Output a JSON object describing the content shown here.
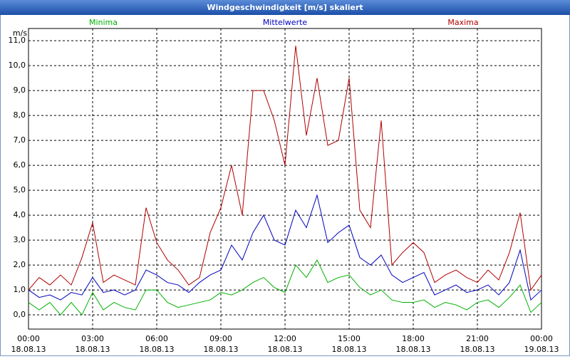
{
  "chart_data": {
    "type": "line",
    "title": "Windgeschwindigkeit [m/s] skaliert",
    "y_unit": "m/s",
    "x": [
      0,
      0.5,
      1,
      1.5,
      2,
      2.5,
      3,
      3.5,
      4,
      4.5,
      5,
      5.5,
      6,
      6.5,
      7,
      7.5,
      8,
      8.5,
      9,
      9.5,
      10,
      10.5,
      11,
      11.5,
      12,
      12.5,
      13,
      13.5,
      14,
      14.5,
      15,
      15.5,
      16,
      16.5,
      17,
      17.5,
      18,
      18.5,
      19,
      19.5,
      20,
      20.5,
      21,
      21.5,
      22,
      22.5,
      23,
      23.5,
      24
    ],
    "series": [
      {
        "name": "Minima",
        "color": "#00b000",
        "values": [
          0.5,
          0.2,
          0.5,
          0.0,
          0.5,
          0.0,
          0.9,
          0.2,
          0.5,
          0.3,
          0.2,
          1.0,
          1.0,
          0.5,
          0.3,
          0.4,
          0.5,
          0.6,
          0.9,
          0.8,
          1.0,
          1.3,
          1.5,
          1.1,
          0.9,
          2.0,
          1.5,
          2.2,
          1.3,
          1.5,
          1.6,
          1.1,
          0.8,
          1.0,
          0.6,
          0.5,
          0.5,
          0.6,
          0.3,
          0.5,
          0.4,
          0.2,
          0.5,
          0.6,
          0.3,
          0.7,
          1.2,
          0.1,
          0.5
        ]
      },
      {
        "name": "Mittelwerte",
        "color": "#0000c0",
        "values": [
          1.0,
          0.7,
          0.8,
          0.6,
          0.9,
          0.8,
          1.5,
          0.9,
          1.0,
          0.8,
          1.0,
          1.8,
          1.6,
          1.3,
          1.2,
          0.9,
          1.3,
          1.6,
          1.8,
          2.8,
          2.2,
          3.3,
          4.0,
          3.0,
          2.8,
          4.2,
          3.5,
          4.8,
          2.9,
          3.3,
          3.6,
          2.3,
          2.0,
          2.4,
          1.6,
          1.3,
          1.5,
          1.7,
          0.8,
          1.0,
          1.2,
          0.9,
          1.0,
          1.2,
          0.8,
          1.3,
          2.6,
          0.6,
          1.0
        ]
      },
      {
        "name": "Maxima",
        "color": "#b00000",
        "values": [
          1.0,
          1.5,
          1.2,
          1.6,
          1.2,
          2.3,
          3.7,
          1.3,
          1.6,
          1.4,
          1.2,
          4.3,
          2.9,
          2.2,
          1.8,
          1.2,
          1.5,
          3.3,
          4.3,
          6.0,
          4.0,
          9.0,
          9.0,
          7.8,
          6.0,
          10.8,
          7.2,
          9.5,
          6.8,
          7.0,
          9.5,
          4.2,
          3.5,
          7.8,
          2.0,
          2.5,
          2.9,
          2.5,
          1.3,
          1.6,
          1.8,
          1.5,
          1.3,
          1.8,
          1.4,
          2.5,
          4.1,
          1.0,
          1.6
        ]
      }
    ],
    "xlim": [
      0,
      24
    ],
    "xticks": [
      {
        "value": 0,
        "label": "00:00",
        "date": "18.08.13"
      },
      {
        "value": 3,
        "label": "03:00",
        "date": "18.08.13"
      },
      {
        "value": 6,
        "label": "06:00",
        "date": "18.08.13"
      },
      {
        "value": 9,
        "label": "09:00",
        "date": "18.08.13"
      },
      {
        "value": 12,
        "label": "12:00",
        "date": "18.08.13"
      },
      {
        "value": 15,
        "label": "15:00",
        "date": "18.08.13"
      },
      {
        "value": 18,
        "label": "18:00",
        "date": "18.08.13"
      },
      {
        "value": 21,
        "label": "21:00",
        "date": "18.08.13"
      },
      {
        "value": 24,
        "label": "00:00",
        "date": "19.08.13"
      }
    ],
    "ylim": [
      -0.57,
      11.49
    ],
    "yticks": [
      {
        "value": 0,
        "label": "0,0"
      },
      {
        "value": 1,
        "label": "1,0"
      },
      {
        "value": 2,
        "label": "2,0"
      },
      {
        "value": 3,
        "label": "3,0"
      },
      {
        "value": 4,
        "label": "4,0"
      },
      {
        "value": 5,
        "label": "5,0"
      },
      {
        "value": 6,
        "label": "6,0"
      },
      {
        "value": 7,
        "label": "7,0"
      },
      {
        "value": 8,
        "label": "8,0"
      },
      {
        "value": 9,
        "label": "9,0"
      },
      {
        "value": 10,
        "label": "10,0"
      },
      {
        "value": 11,
        "label": "11,0"
      }
    ],
    "grid": true
  }
}
